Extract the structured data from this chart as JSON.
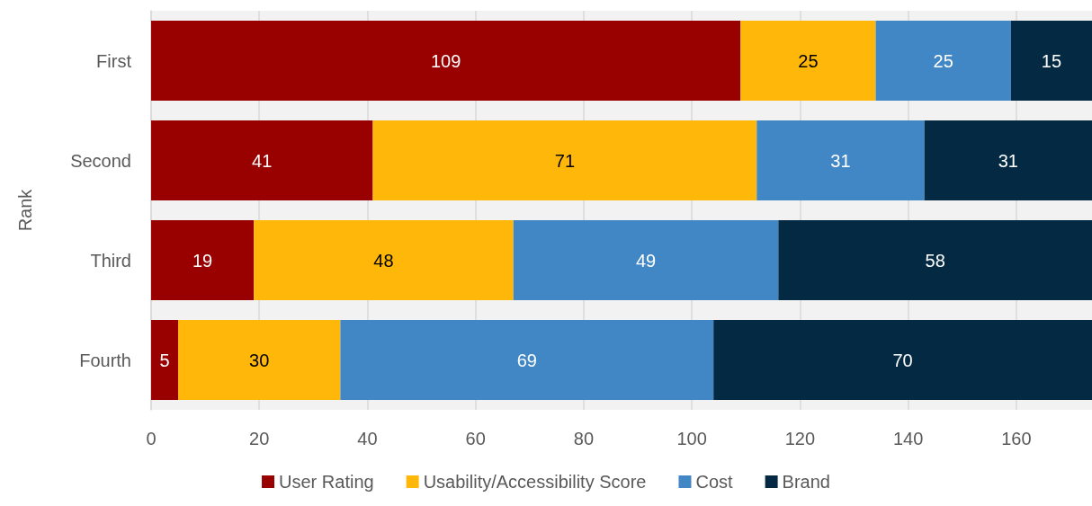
{
  "chart_data": {
    "type": "bar",
    "orientation": "horizontal",
    "stacked": true,
    "ylabel": "Rank",
    "categories": [
      "First",
      "Second",
      "Third",
      "Fourth"
    ],
    "series": [
      {
        "name": "User Rating",
        "color": "#990000",
        "values": [
          109,
          41,
          19,
          5
        ]
      },
      {
        "name": "Usability/Accessibility Score",
        "color": "#ffb809",
        "values": [
          25,
          71,
          48,
          30
        ]
      },
      {
        "name": "Cost",
        "color": "#4187c5",
        "values": [
          25,
          31,
          49,
          69
        ]
      },
      {
        "name": "Brand",
        "color": "#042a43",
        "values": [
          15,
          31,
          58,
          70
        ]
      }
    ],
    "xlim": [
      0,
      174
    ],
    "xticks": [
      0,
      20,
      40,
      60,
      80,
      100,
      120,
      140,
      160
    ],
    "grid": "x",
    "legend": "bottom",
    "data_labels": true
  }
}
